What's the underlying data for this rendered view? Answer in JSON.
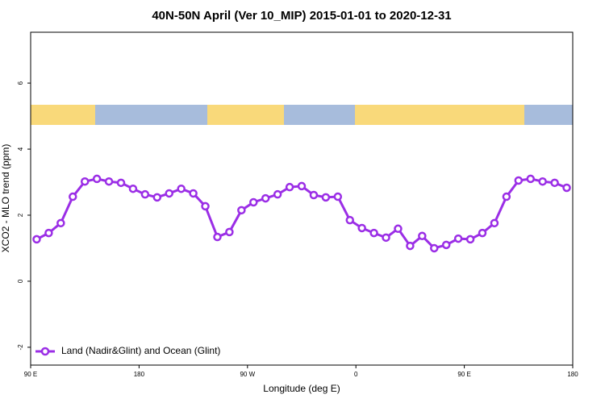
{
  "chart_data": {
    "type": "line",
    "title": "40N-50N April (Ver 10_MIP)   2015-01-01 to 2020-12-31",
    "x_label": "Longitude (deg E)",
    "y_label": "XCO2 - MLO trend (ppm)",
    "x": [
      95,
      105,
      115,
      125,
      135,
      145,
      155,
      165,
      175,
      185,
      195,
      205,
      215,
      225,
      235,
      245,
      255,
      265,
      275,
      285,
      295,
      305,
      315,
      325,
      335,
      345,
      355,
      365,
      375,
      385,
      395,
      405,
      415,
      425,
      435,
      445,
      455,
      465,
      475,
      485,
      495,
      505,
      515,
      525,
      535
    ],
    "series": [
      {
        "name": "Land (Nadir&Glint) and Ocean (Glint)",
        "color": "#9b2ee6",
        "values": [
          1.27,
          1.46,
          1.76,
          2.56,
          3.02,
          3.1,
          3.02,
          2.98,
          2.8,
          2.63,
          2.54,
          2.66,
          2.8,
          2.66,
          2.27,
          1.34,
          1.49,
          2.15,
          2.39,
          2.51,
          2.63,
          2.85,
          2.88,
          2.61,
          2.54,
          2.56,
          1.85,
          1.61,
          1.46,
          1.32,
          1.59,
          1.07,
          1.37,
          1.0,
          1.1,
          1.29,
          1.27,
          1.46,
          1.76,
          2.56,
          3.05,
          3.1,
          3.02,
          2.98,
          2.83
        ]
      }
    ],
    "xlim": [
      90,
      540
    ],
    "xticks": [
      {
        "value": 90,
        "label": "90 E"
      },
      180,
      {
        "value": 270,
        "label": "90 W"
      },
      {
        "value": 360,
        "label": "0"
      },
      {
        "value": 450,
        "label": "90 E"
      },
      {
        "value": 540,
        "label": "180"
      }
    ],
    "ylim": [
      -2.54,
      7.54
    ],
    "yticks": [
      -2,
      0,
      2,
      4,
      6
    ],
    "legend": "bottom-left"
  }
}
